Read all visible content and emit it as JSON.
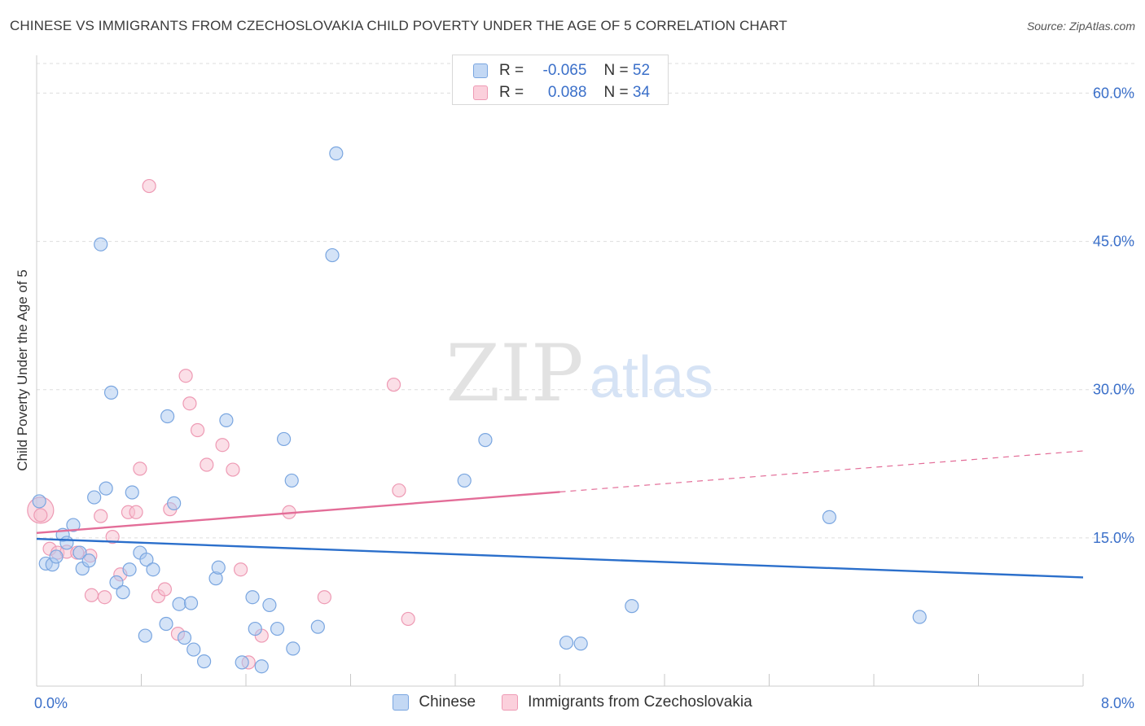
{
  "header": {
    "title": "CHINESE VS IMMIGRANTS FROM CZECHOSLOVAKIA CHILD POVERTY UNDER THE AGE OF 5 CORRELATION CHART",
    "source": "Source: ZipAtlas.com"
  },
  "watermark": {
    "zip": "ZIP",
    "atlas": "atlas"
  },
  "legend": {
    "rows": [
      {
        "r_label": "R =",
        "r_value": "-0.065",
        "n_label": "N =",
        "n_value": "52"
      },
      {
        "r_label": "R =",
        "r_value": "0.088",
        "n_label": "N =",
        "n_value": "34"
      }
    ]
  },
  "bottom_legend": {
    "series1": "Chinese",
    "series2": "Immigrants from Czechoslovakia"
  },
  "colors": {
    "blue_fill": "#a9c8f0",
    "blue_stroke": "#7aa6e0",
    "blue_line": "#2b6fcb",
    "pink_fill": "#f8c0d0",
    "pink_stroke": "#ee9ab4",
    "pink_line": "#e36d98",
    "tick_label": "#3a6fc9",
    "grid": "#dddddd"
  },
  "chart_data": {
    "type": "scatter",
    "title": "CHINESE VS IMMIGRANTS FROM CZECHOSLOVAKIA CHILD POVERTY UNDER THE AGE OF 5 CORRELATION CHART",
    "xlabel": "",
    "ylabel": "Child Poverty Under the Age of 5",
    "xlim": [
      0,
      8
    ],
    "ylim": [
      0,
      63
    ],
    "x_tick_labels": [
      "0.0%",
      "8.0%"
    ],
    "y_ticks": [
      15,
      30,
      45,
      60
    ],
    "y_tick_labels": [
      "15.0%",
      "30.0%",
      "45.0%",
      "60.0%"
    ],
    "grid": true,
    "legend_position": "top-center",
    "series": [
      {
        "name": "Chinese",
        "r": -0.065,
        "n": 52,
        "trend": {
          "x": [
            0,
            8
          ],
          "y": [
            14.9,
            11.0
          ],
          "dashed_from_x": null
        },
        "points": [
          [
            0.02,
            18.7
          ],
          [
            0.07,
            12.4
          ],
          [
            0.12,
            12.3
          ],
          [
            0.15,
            13.1
          ],
          [
            0.2,
            15.3
          ],
          [
            0.23,
            14.5
          ],
          [
            0.28,
            16.3
          ],
          [
            0.33,
            13.5
          ],
          [
            0.35,
            11.9
          ],
          [
            0.4,
            12.7
          ],
          [
            0.44,
            19.1
          ],
          [
            0.49,
            44.7
          ],
          [
            0.53,
            20.0
          ],
          [
            0.57,
            29.7
          ],
          [
            0.61,
            10.5
          ],
          [
            0.66,
            9.5
          ],
          [
            0.71,
            11.8
          ],
          [
            0.73,
            19.6
          ],
          [
            0.79,
            13.5
          ],
          [
            0.83,
            5.1
          ],
          [
            0.84,
            12.8
          ],
          [
            0.89,
            11.8
          ],
          [
            0.99,
            6.3
          ],
          [
            1.0,
            27.3
          ],
          [
            1.05,
            18.5
          ],
          [
            1.09,
            8.3
          ],
          [
            1.13,
            4.9
          ],
          [
            1.18,
            8.4
          ],
          [
            1.2,
            3.7
          ],
          [
            1.28,
            2.5
          ],
          [
            1.37,
            10.9
          ],
          [
            1.39,
            12.0
          ],
          [
            1.45,
            26.9
          ],
          [
            1.57,
            2.4
          ],
          [
            1.65,
            9.0
          ],
          [
            1.67,
            5.8
          ],
          [
            1.72,
            2.0
          ],
          [
            1.78,
            8.2
          ],
          [
            1.84,
            5.8
          ],
          [
            1.89,
            25.0
          ],
          [
            1.95,
            20.8
          ],
          [
            1.96,
            3.8
          ],
          [
            2.15,
            6.0
          ],
          [
            2.26,
            43.6
          ],
          [
            2.29,
            53.9
          ],
          [
            3.27,
            20.8
          ],
          [
            3.43,
            24.9
          ],
          [
            4.05,
            4.4
          ],
          [
            4.16,
            4.3
          ],
          [
            4.55,
            8.1
          ],
          [
            6.06,
            17.1
          ],
          [
            6.75,
            7.0
          ]
        ]
      },
      {
        "name": "Immigrants from Czechoslovakia",
        "r": 0.088,
        "n": 34,
        "trend": {
          "x": [
            0,
            8
          ],
          "y": [
            15.5,
            23.8
          ],
          "dashed_from_x": 4.0
        },
        "points": [
          [
            0.03,
            17.8
          ],
          [
            0.1,
            13.9
          ],
          [
            0.16,
            13.5
          ],
          [
            0.23,
            13.6
          ],
          [
            0.31,
            13.5
          ],
          [
            0.41,
            13.2
          ],
          [
            0.42,
            9.2
          ],
          [
            0.49,
            17.2
          ],
          [
            0.52,
            9.0
          ],
          [
            0.58,
            15.1
          ],
          [
            0.64,
            11.3
          ],
          [
            0.7,
            17.6
          ],
          [
            0.76,
            17.6
          ],
          [
            0.79,
            22.0
          ],
          [
            0.86,
            50.6
          ],
          [
            0.93,
            9.1
          ],
          [
            0.98,
            9.8
          ],
          [
            1.02,
            17.9
          ],
          [
            1.08,
            5.3
          ],
          [
            1.14,
            31.4
          ],
          [
            1.17,
            28.6
          ],
          [
            1.23,
            25.9
          ],
          [
            1.3,
            22.4
          ],
          [
            1.42,
            24.4
          ],
          [
            1.5,
            21.9
          ],
          [
            1.56,
            11.8
          ],
          [
            1.62,
            2.4
          ],
          [
            1.72,
            5.1
          ],
          [
            1.93,
            17.6
          ],
          [
            2.2,
            9.0
          ],
          [
            2.73,
            30.5
          ],
          [
            2.77,
            19.8
          ],
          [
            2.84,
            6.8
          ],
          [
            0.03,
            17.3
          ]
        ]
      }
    ]
  }
}
